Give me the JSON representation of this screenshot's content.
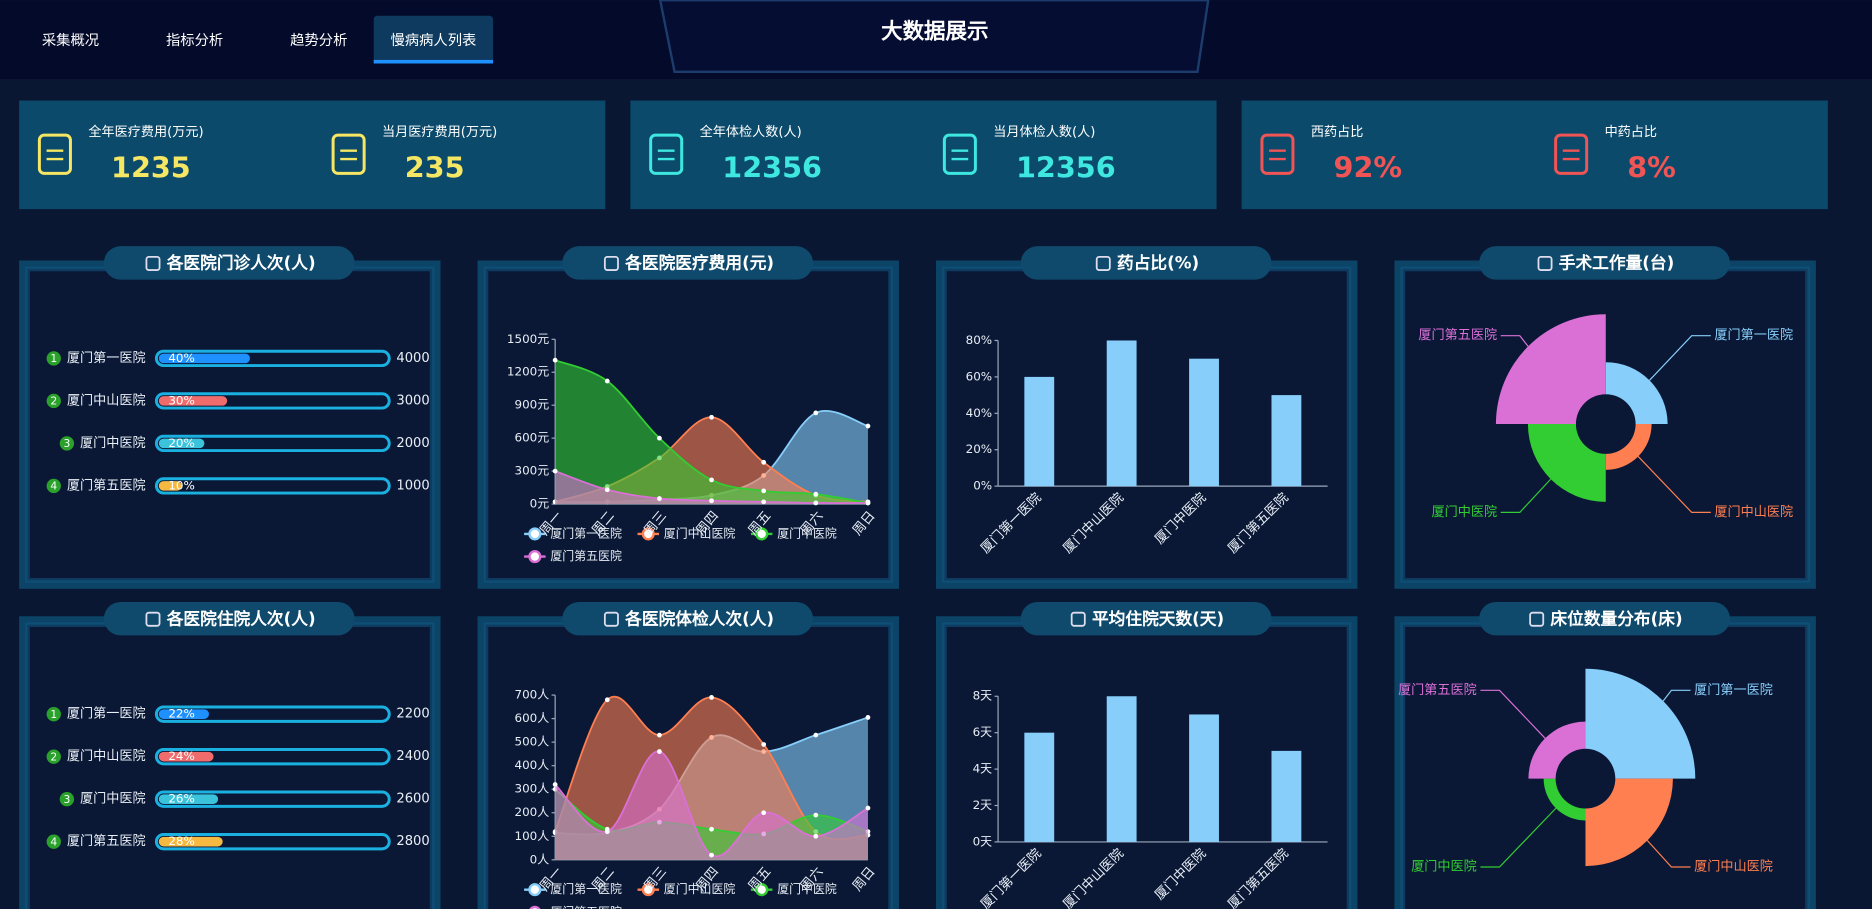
{
  "nav": {
    "items": [
      "采集概况",
      "指标分析",
      "趋势分析",
      "慢病病人列表"
    ],
    "active": 3
  },
  "header": {
    "title": "大数据展示"
  },
  "stats": [
    {
      "label": "全年医疗费用(万元)",
      "value": 1235,
      "color": "#f5e663"
    },
    {
      "label": "当月医疗费用(万元)",
      "value": 235,
      "color": "#f5e663"
    },
    {
      "label": "全年体检人数(人)",
      "value": 12356,
      "color": "#3ee8e0"
    },
    {
      "label": "当月体检人数(人)",
      "value": 12356,
      "color": "#3ee8e0"
    },
    {
      "label": "西药占比",
      "value": "92%",
      "color": "#f05454"
    },
    {
      "label": "中药占比",
      "value": "8%",
      "color": "#f05454"
    }
  ],
  "chart_data": [
    {
      "type": "progress",
      "title": "各医院门诊人次(人)",
      "categories": [
        "厦门第一医院",
        "厦门中山医院",
        "厦门中医院",
        "厦门第五医院"
      ],
      "ranks": [
        1,
        2,
        3,
        4
      ],
      "values": [
        40,
        30,
        20,
        10
      ],
      "value_labels": [
        "40%",
        "30%",
        "20%",
        "10%"
      ],
      "totals": [
        4000,
        3000,
        2000,
        1000
      ],
      "colors": [
        "#1e90ff",
        "#f06c6c",
        "#3cc3dc",
        "#f5b942"
      ],
      "xlim": [
        0,
        100
      ]
    },
    {
      "type": "area",
      "title": "各医院医疗费用(元)",
      "categories": [
        "周一",
        "周二",
        "周三",
        "周四",
        "周五",
        "周六",
        "周日"
      ],
      "series": [
        {
          "name": "厦门第一医院",
          "color": "#87cefa",
          "values": [
            20,
            20,
            40,
            80,
            260,
            830,
            710
          ]
        },
        {
          "name": "厦门中山医院",
          "color": "#ff7f50",
          "values": [
            20,
            160,
            420,
            790,
            380,
            80,
            20
          ]
        },
        {
          "name": "厦门中医院",
          "color": "#32cd32",
          "values": [
            1310,
            1120,
            600,
            220,
            120,
            90,
            10
          ]
        },
        {
          "name": "厦门第五医院",
          "color": "#da70d6",
          "values": [
            300,
            130,
            50,
            30,
            20,
            10,
            10
          ]
        }
      ],
      "ylim": [
        0,
        1500
      ],
      "yticks": [
        {
          "value": 0,
          "label": "0元"
        },
        {
          "value": 300,
          "label": "300元"
        },
        {
          "value": 600,
          "label": "600元"
        },
        {
          "value": 900,
          "label": "900元"
        },
        {
          "value": 1200,
          "label": "1200元"
        },
        {
          "value": 1500,
          "label": "1500元"
        }
      ]
    },
    {
      "type": "bar",
      "title": "药占比(%)",
      "categories": [
        "厦门第一医院",
        "厦门中山医院",
        "厦门中医院",
        "厦门第五医院"
      ],
      "values": [
        60,
        80,
        70,
        50
      ],
      "color": "#87cefa",
      "ylim": [
        0,
        80
      ],
      "yticks": [
        {
          "value": 0,
          "label": "0%"
        },
        {
          "value": 20,
          "label": "20%"
        },
        {
          "value": 40,
          "label": "40%"
        },
        {
          "value": 60,
          "label": "60%"
        },
        {
          "value": 80,
          "label": "80%"
        }
      ]
    },
    {
      "type": "rose",
      "title": "手术工作量(台)",
      "categories": [
        "厦门第一医院",
        "厦门中山医院",
        "厦门中医院",
        "厦门第五医院"
      ],
      "values": [
        40,
        20,
        60,
        100
      ],
      "colors": [
        "#87cefa",
        "#ff7f50",
        "#32cd32",
        "#da70d6"
      ]
    },
    {
      "type": "progress",
      "title": "各医院住院人次(人)",
      "categories": [
        "厦门第一医院",
        "厦门中山医院",
        "厦门中医院",
        "厦门第五医院"
      ],
      "ranks": [
        1,
        2,
        3,
        4
      ],
      "values": [
        22,
        24,
        26,
        28
      ],
      "value_labels": [
        "22%",
        "24%",
        "26%",
        "28%"
      ],
      "totals": [
        2200,
        2400,
        2600,
        2800
      ],
      "colors": [
        "#1e90ff",
        "#f06c6c",
        "#3cc3dc",
        "#f5b942"
      ],
      "xlim": [
        0,
        100
      ]
    },
    {
      "type": "area",
      "title": "各医院体检人次(人)",
      "categories": [
        "周一",
        "周二",
        "周三",
        "周四",
        "周五",
        "周六",
        "周日"
      ],
      "series": [
        {
          "name": "厦门第一医院",
          "color": "#87cefa",
          "values": [
            115,
            115,
            215,
            520,
            460,
            530,
            605
          ]
        },
        {
          "name": "厦门中山医院",
          "color": "#ff7f50",
          "values": [
            120,
            680,
            530,
            690,
            490,
            120,
            105
          ]
        },
        {
          "name": "厦门中医院",
          "color": "#32cd32",
          "values": [
            300,
            130,
            160,
            130,
            110,
            190,
            120
          ]
        },
        {
          "name": "厦门第五医院",
          "color": "#da70d6",
          "values": [
            320,
            120,
            460,
            20,
            200,
            100,
            220
          ]
        }
      ],
      "ylim": [
        0,
        700
      ],
      "yticks": [
        {
          "value": 0,
          "label": "0人"
        },
        {
          "value": 100,
          "label": "100人"
        },
        {
          "value": 200,
          "label": "200人"
        },
        {
          "value": 300,
          "label": "300人"
        },
        {
          "value": 400,
          "label": "400人"
        },
        {
          "value": 500,
          "label": "500人"
        },
        {
          "value": 600,
          "label": "600人"
        },
        {
          "value": 700,
          "label": "700人"
        }
      ]
    },
    {
      "type": "bar",
      "title": "平均住院天数(天)",
      "categories": [
        "厦门第一医院",
        "厦门中山医院",
        "厦门中医院",
        "厦门第五医院"
      ],
      "values": [
        6,
        8,
        7,
        5
      ],
      "color": "#87cefa",
      "ylim": [
        0,
        8
      ],
      "yticks": [
        {
          "value": 0,
          "label": "0天"
        },
        {
          "value": 2,
          "label": "2天"
        },
        {
          "value": 4,
          "label": "4天"
        },
        {
          "value": 6,
          "label": "6天"
        },
        {
          "value": 8,
          "label": "8天"
        }
      ]
    },
    {
      "type": "rose",
      "title": "床位数量分布(床)",
      "categories": [
        "厦门第一医院",
        "厦门中山医院",
        "厦门中医院",
        "厦门第五医院"
      ],
      "values": [
        100,
        72,
        15,
        34
      ],
      "colors": [
        "#87cefa",
        "#ff7f50",
        "#32cd32",
        "#da70d6"
      ]
    }
  ]
}
